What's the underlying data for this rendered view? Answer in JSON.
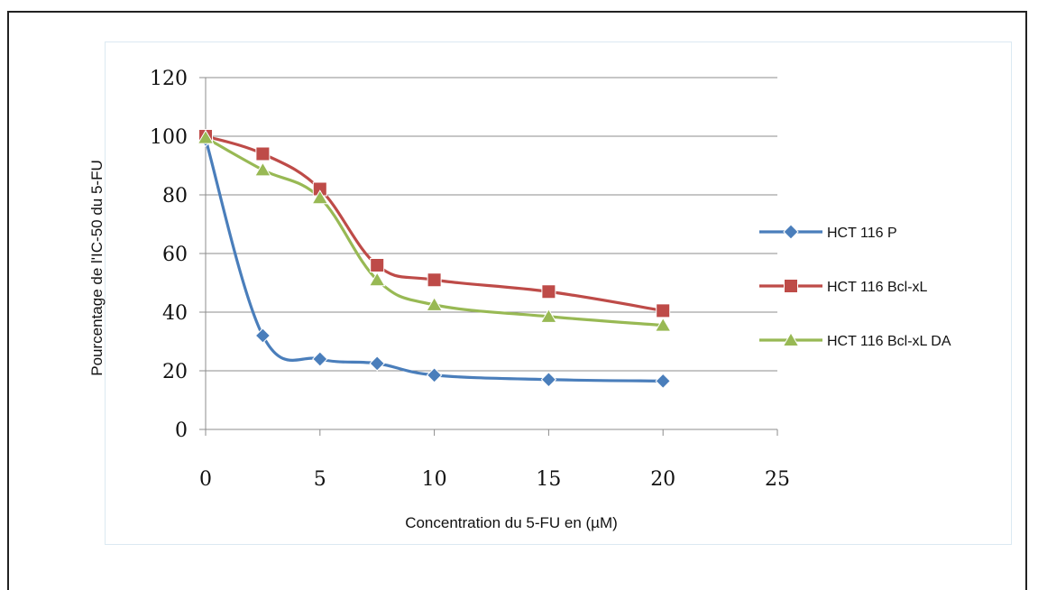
{
  "chart_data": {
    "type": "line",
    "xlabel": "Concentration du 5-FU en (µM)",
    "ylabel": "Pourcentage de l'IC-50 du 5-FU",
    "xlim": [
      0,
      25
    ],
    "ylim": [
      0,
      120
    ],
    "xticks": [
      0,
      5,
      10,
      15,
      20,
      25
    ],
    "yticks": [
      0,
      20,
      40,
      60,
      80,
      100,
      120
    ],
    "grid": "horizontal",
    "legend_position": "right",
    "x": [
      0,
      2.5,
      5,
      7.5,
      10,
      15,
      20
    ],
    "series": [
      {
        "name": "HCT 116 P",
        "color": "#4a7ebb",
        "marker": "diamond",
        "values": [
          99,
          32,
          24,
          22.5,
          18.5,
          17,
          16.5
        ]
      },
      {
        "name": "HCT 116 Bcl-xL",
        "color": "#be4b48",
        "marker": "square",
        "values": [
          100,
          94,
          82,
          56,
          51,
          47,
          40.5
        ]
      },
      {
        "name": "HCT 116 Bcl-xL DA",
        "color": "#98b954",
        "marker": "triangle",
        "values": [
          99.5,
          88.5,
          79,
          51,
          42.5,
          38.5,
          35.5
        ]
      }
    ]
  }
}
